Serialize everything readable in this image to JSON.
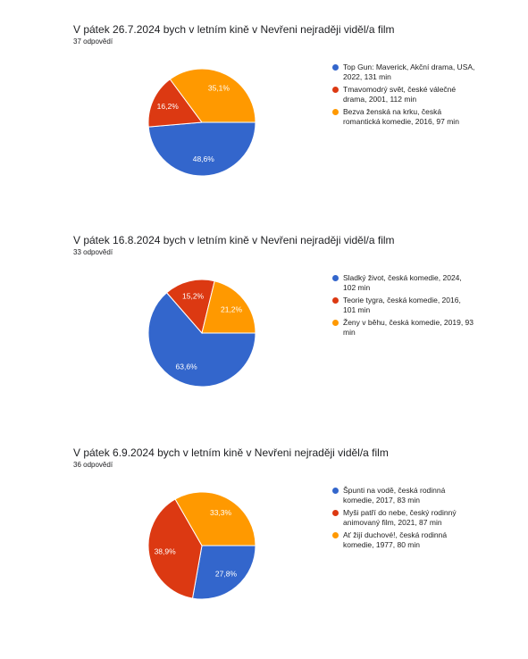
{
  "chart_data": [
    {
      "type": "pie",
      "title": "V pátek 26.7.2024 bych v letním kině v Nevřeni nejraději viděl/a film",
      "subtitle": "37 odpovědí",
      "categories": [
        "Top Gun: Maverick, Akční drama, USA, 2022, 131 min",
        "Tmavomodrý svět, české válečné drama, 2001, 112 min",
        "Bezva ženská na krku, česká romantická komedie, 2016, 97 min"
      ],
      "values": [
        48.6,
        16.2,
        35.1
      ],
      "value_labels": [
        "48,6%",
        "16,2%",
        "35,1%"
      ],
      "colors": [
        "#3366cc",
        "#dc3912",
        "#ff9900"
      ]
    },
    {
      "type": "pie",
      "title": "V pátek 16.8.2024 bych v letním kině v Nevřeni nejraději viděl/a film",
      "subtitle": "33 odpovědí",
      "categories": [
        "Sladký život, česká komedie, 2024, 102 min",
        "Teorie tygra, česká komedie, 2016, 101 min",
        "Ženy v běhu, česká komedie, 2019, 93 min"
      ],
      "values": [
        63.6,
        15.2,
        21.2
      ],
      "value_labels": [
        "63,6%",
        "15,2%",
        "21,2%"
      ],
      "colors": [
        "#3366cc",
        "#dc3912",
        "#ff9900"
      ]
    },
    {
      "type": "pie",
      "title": "V pátek 6.9.2024 bych v letním kině v Nevřeni nejraději viděl/a film",
      "subtitle": "36 odpovědí",
      "categories": [
        "Špunti na vodě, česká rodinná komedie, 2017, 83 min",
        "Myši patří do nebe, český rodinný animovaný film, 2021, 87 min",
        "Ať žijí duchové!, česká rodinná komedie, 1977, 80 min"
      ],
      "values": [
        27.8,
        38.9,
        33.3
      ],
      "value_labels": [
        "27,8%",
        "38,9%",
        "33,3%"
      ],
      "colors": [
        "#3366cc",
        "#dc3912",
        "#ff9900"
      ]
    }
  ]
}
